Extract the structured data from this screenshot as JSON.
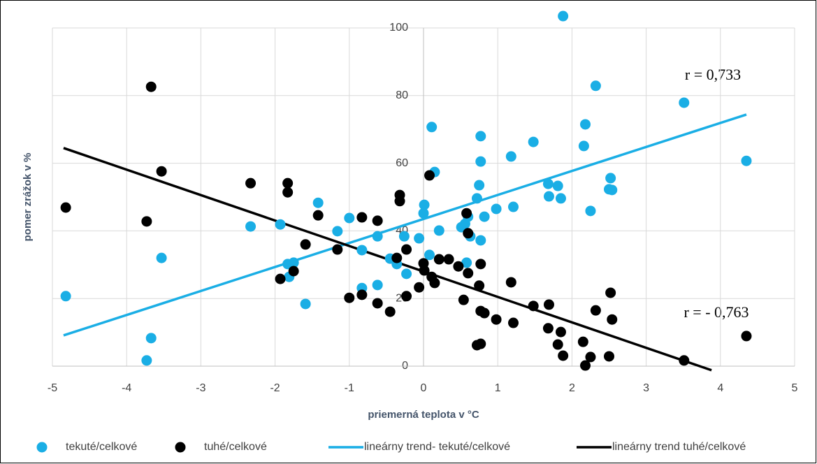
{
  "chart_data": {
    "type": "scatter",
    "x_label": "priemerná teplota v °C",
    "y_label": "pomer zrážok v %",
    "xlim": [
      -5,
      5
    ],
    "xticks": [
      -5,
      -4,
      -3,
      -2,
      -1,
      0,
      1,
      2,
      3,
      4,
      5
    ],
    "ylim": [
      0,
      100
    ],
    "yticks": [
      0,
      20,
      40,
      60,
      80,
      100
    ],
    "grid": true,
    "legend": "bottom",
    "annotations": [
      {
        "text": "r = 0,733"
      },
      {
        "text": "r = - 0,763"
      }
    ],
    "series": [
      {
        "name": "tekuté/celkové",
        "type": "scatter",
        "color": "#1aaee5",
        "x": [
          -4.82,
          -3.73,
          -3.67,
          -3.53,
          -2.33,
          -1.93,
          -1.83,
          -1.81,
          -1.75,
          -1.59,
          -1.42,
          -1.16,
          -1.0,
          -0.83,
          -0.83,
          -0.62,
          -0.62,
          -0.45,
          -0.36,
          -0.26,
          -0.23,
          -0.06,
          0,
          0.01,
          0.08,
          0.11,
          0.15,
          0.21,
          0.51,
          0.56,
          0.58,
          0.6,
          0.63,
          0.72,
          0.75,
          0.77,
          0.77,
          0.77,
          0.82,
          0.98,
          1.18,
          1.21,
          1.48,
          1.68,
          1.69,
          1.81,
          1.85,
          1.88,
          2.16,
          2.18,
          2.25,
          2.32,
          2.5,
          2.52,
          2.54,
          3.51,
          4.35
        ],
        "values": [
          20.7,
          1.7,
          8.3,
          32,
          41.3,
          41.9,
          30.2,
          26.4,
          30.6,
          18.4,
          48.3,
          39.9,
          43.8,
          34.3,
          23.1,
          24,
          38.4,
          31.8,
          30.2,
          38.4,
          27.3,
          37.8,
          45.2,
          47.7,
          32.9,
          70.7,
          57.4,
          40.1,
          41.1,
          42.1,
          30.6,
          44.2,
          38.4,
          49.6,
          53.5,
          68,
          60.5,
          37.2,
          44.2,
          46.5,
          62,
          47.1,
          66.3,
          53.9,
          50.2,
          53.3,
          49.6,
          103.5,
          65.1,
          71.5,
          45.9,
          82.9,
          52.3,
          55.6,
          52.1,
          77.9,
          60.7
        ]
      },
      {
        "name": "tuhé/celkové",
        "type": "scatter",
        "color": "#000000",
        "x": [
          -4.82,
          -3.73,
          -3.67,
          -3.53,
          -2.33,
          -1.93,
          -1.83,
          -1.83,
          -1.75,
          -1.59,
          -1.42,
          -1.16,
          -1.0,
          -0.83,
          -0.83,
          -0.62,
          -0.62,
          -0.45,
          -0.36,
          -0.32,
          -0.32,
          -0.23,
          -0.23,
          -0.06,
          0,
          0.01,
          0.08,
          0.11,
          0.15,
          0.21,
          0.34,
          0.47,
          0.54,
          0.58,
          0.6,
          0.6,
          0.72,
          0.75,
          0.77,
          0.77,
          0.77,
          0.82,
          0.98,
          1.18,
          1.21,
          1.48,
          1.68,
          1.69,
          1.81,
          1.85,
          1.88,
          2.15,
          2.18,
          2.25,
          2.32,
          2.5,
          2.52,
          2.54,
          3.51,
          4.35
        ],
        "values": [
          46.9,
          42.8,
          82.6,
          57.6,
          54.1,
          25.8,
          54.1,
          51.4,
          28.1,
          36,
          44.6,
          34.5,
          20.2,
          44,
          21.1,
          43,
          18.6,
          16.1,
          32,
          50.6,
          48.8,
          34.5,
          20.7,
          23.3,
          30.4,
          28.3,
          56.4,
          26.4,
          24.6,
          31.6,
          31.6,
          29.5,
          19.6,
          45.2,
          39.3,
          27.5,
          6.2,
          23.8,
          6.6,
          30.2,
          16.3,
          15.7,
          13.8,
          24.8,
          12.8,
          17.8,
          11.2,
          18.2,
          6.4,
          10.1,
          3.1,
          7.2,
          0.2,
          2.7,
          16.5,
          2.9,
          21.7,
          13.8,
          1.7,
          8.9
        ]
      },
      {
        "name": "lineárny trend- tekuté/celkové",
        "type": "line",
        "color": "#1aaee5",
        "x": [
          -4.85,
          4.35
        ],
        "values": [
          9.1,
          74.4
        ]
      },
      {
        "name": "lineárny trend tuhé/celkové",
        "type": "line",
        "color": "#000000",
        "x": [
          -4.85,
          3.88
        ],
        "values": [
          64.5,
          -1.2
        ]
      }
    ]
  }
}
